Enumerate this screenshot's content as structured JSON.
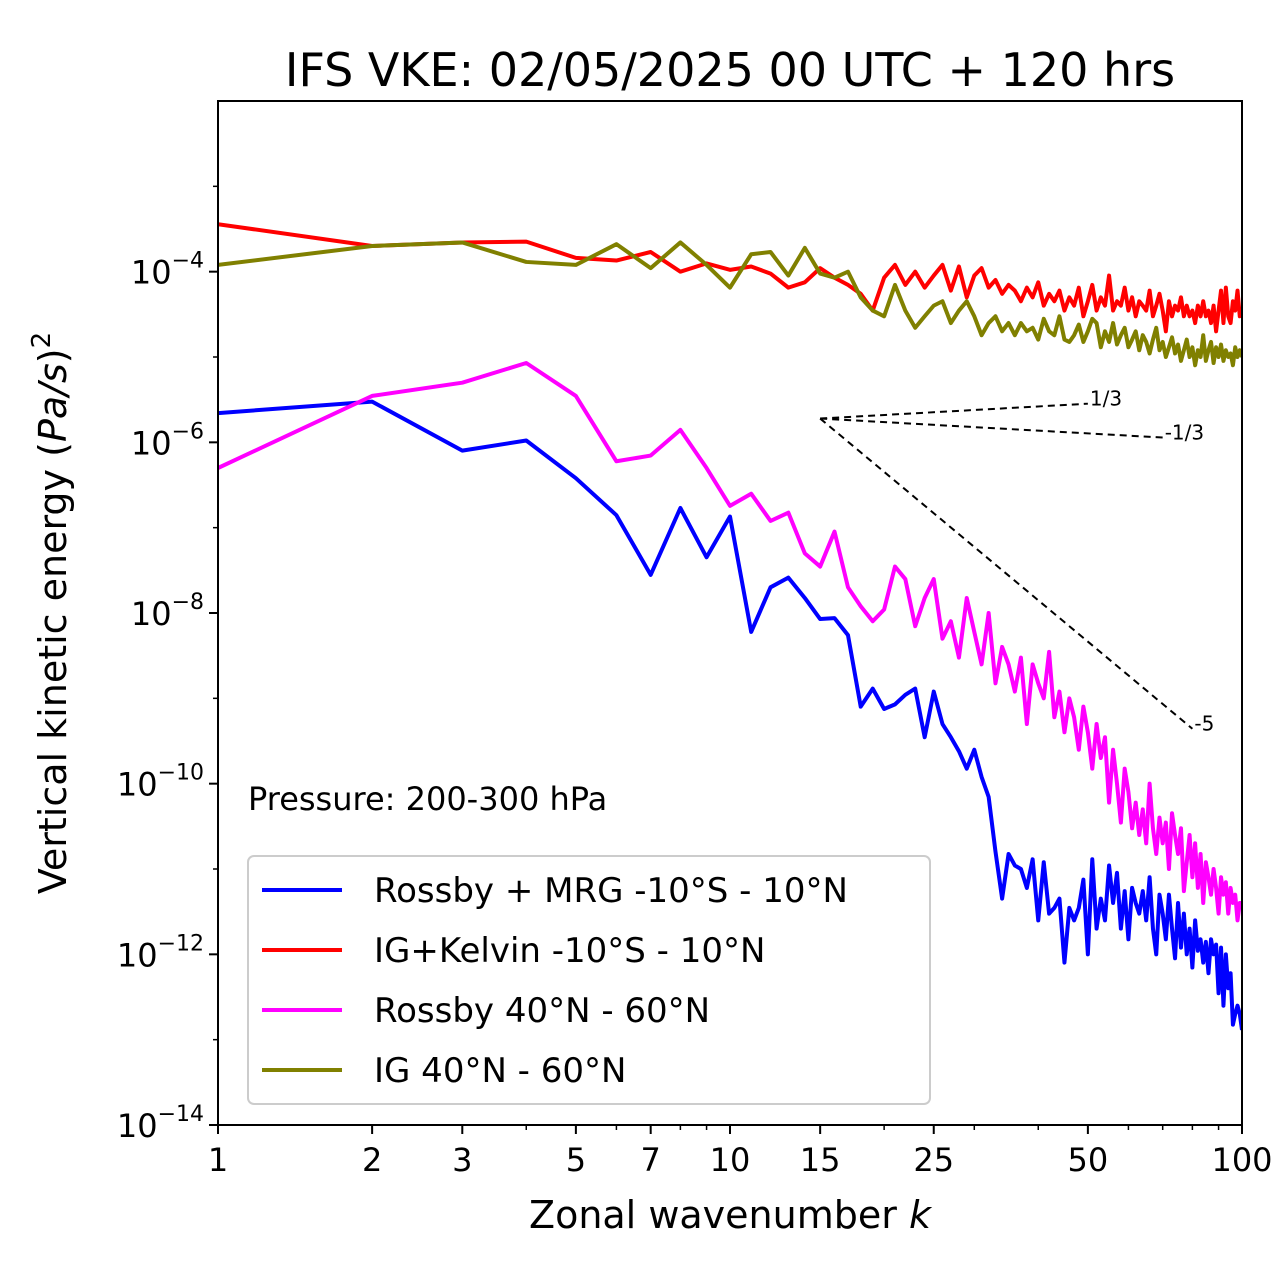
{
  "chart_data": {
    "type": "line",
    "title": "IFS VKE: 02/05/2025 00 UTC + 120 hrs",
    "xlabel": "Zonal wavenumber",
    "xlabel_var": "k",
    "ylabel_prefix": "Vertical kinetic energy (",
    "ylabel_var": "Pa/s",
    "ylabel_suffix": ")",
    "ylabel_power": "2",
    "xscale": "log",
    "yscale": "log",
    "xlim": [
      1,
      100
    ],
    "ylim": [
      1e-14,
      0.01
    ],
    "x_ticks": [
      1,
      2,
      3,
      5,
      7,
      10,
      15,
      25,
      50,
      100
    ],
    "x_tick_labels": [
      "1",
      "2",
      "3",
      "5",
      "7",
      "10",
      "15",
      "25",
      "50",
      "100"
    ],
    "y_ticks": [
      1e-14,
      1e-12,
      1e-10,
      1e-08,
      1e-06,
      0.0001
    ],
    "y_tick_base": "10",
    "y_tick_exponents": [
      "−14",
      "−12",
      "−10",
      "−8",
      "−6",
      "−4"
    ],
    "annotation": "Pressure: 200-300 hPa",
    "legend_position": "lower-left",
    "series": [
      {
        "name": "Rossby + MRG -10°S - 10°N",
        "color": "#0000ff",
        "x": [
          1,
          2,
          3,
          4,
          5,
          6,
          7,
          8,
          9,
          10,
          11,
          12,
          13,
          14,
          15,
          16,
          17,
          18,
          19,
          20,
          21,
          22,
          23,
          24,
          25,
          26,
          27,
          28,
          29,
          30,
          31,
          32,
          33,
          34,
          35,
          36,
          37,
          38,
          39,
          40,
          41,
          42,
          43,
          44,
          45,
          46,
          47,
          48,
          49,
          50,
          51,
          52,
          53,
          54,
          55,
          56,
          57,
          58,
          59,
          60,
          61,
          62,
          63,
          64,
          65,
          66,
          67,
          68,
          69,
          70,
          71,
          72,
          73,
          74,
          75,
          76,
          77,
          78,
          79,
          80,
          81,
          82,
          83,
          84,
          85,
          86,
          87,
          88,
          89,
          90,
          91,
          92,
          93,
          94,
          95,
          96,
          97,
          98,
          99,
          100
        ],
        "y": [
          2.2e-06,
          3e-06,
          8e-07,
          1.05e-06,
          3.8e-07,
          1.4e-07,
          2.8e-08,
          1.7e-07,
          4.5e-08,
          1.35e-07,
          6e-09,
          2e-08,
          2.6e-08,
          1.5e-08,
          8.5e-09,
          8.7e-09,
          5.5e-09,
          8e-10,
          1.3e-09,
          7.5e-10,
          8.5e-10,
          1.1e-09,
          1.3e-09,
          3.5e-10,
          1.2e-09,
          5e-10,
          3.5e-10,
          2.4e-10,
          1.5e-10,
          2.5e-10,
          1.2e-10,
          7e-11,
          1.6e-11,
          4.5e-12,
          1.5e-11,
          1.1e-11,
          1e-11,
          6e-12,
          1.3e-11,
          2.5e-12,
          1.2e-11,
          3e-12,
          3.5e-12,
          4.5e-12,
          8e-13,
          3.5e-12,
          2.5e-12,
          3.5e-12,
          7.5e-12,
          1e-12,
          1.3e-11,
          2e-12,
          4.5e-12,
          2.5e-12,
          1.1e-11,
          4e-12,
          9e-12,
          2e-12,
          5.5e-12,
          1.5e-12,
          6e-12,
          4e-12,
          3e-12,
          5.5e-12,
          2.5e-12,
          8e-12,
          2e-12,
          1e-12,
          5e-12,
          3e-12,
          1.5e-12,
          5e-12,
          2e-12,
          9e-13,
          4e-12,
          1.2e-12,
          3e-12,
          1e-12,
          2e-12,
          7e-13,
          2.5e-12,
          1.1e-12,
          1.5e-12,
          8e-13,
          1.4e-12,
          6e-13,
          1.5e-12,
          1e-12,
          1.3e-12,
          3.5e-13,
          1.2e-12,
          2.5e-13,
          1e-12,
          4e-13,
          6e-13,
          1.5e-13,
          2e-13,
          2.5e-13,
          2e-13,
          1.3e-13
        ]
      },
      {
        "name": "IG+Kelvin -10°S - 10°N",
        "color": "#ff0000",
        "x": [
          1,
          2,
          3,
          4,
          5,
          6,
          7,
          8,
          9,
          10,
          11,
          12,
          13,
          14,
          15,
          16,
          17,
          18,
          19,
          20,
          21,
          22,
          23,
          24,
          25,
          26,
          27,
          28,
          29,
          30,
          31,
          32,
          33,
          34,
          35,
          36,
          37,
          38,
          39,
          40,
          41,
          42,
          43,
          44,
          45,
          46,
          47,
          48,
          49,
          50,
          51,
          52,
          53,
          54,
          55,
          56,
          57,
          58,
          59,
          60,
          61,
          62,
          63,
          64,
          65,
          66,
          67,
          68,
          69,
          70,
          71,
          72,
          73,
          74,
          75,
          76,
          77,
          78,
          79,
          80,
          81,
          82,
          83,
          84,
          85,
          86,
          87,
          88,
          89,
          90,
          91,
          92,
          93,
          94,
          95,
          96,
          97,
          98,
          99,
          100
        ],
        "y": [
          0.00036,
          0.0002,
          0.00022,
          0.000225,
          0.000145,
          0.000135,
          0.00017,
          0.0001,
          0.000125,
          0.000105,
          0.000115,
          9.5e-05,
          6.5e-05,
          7.5e-05,
          0.00011,
          8.5e-05,
          7e-05,
          5.5e-05,
          3.5e-05,
          8.5e-05,
          0.00012,
          7e-05,
          0.0001,
          6.5e-05,
          9e-05,
          0.00012,
          6e-05,
          0.000115,
          5e-05,
          9e-05,
          0.00011,
          6.5e-05,
          8e-05,
          5.5e-05,
          7e-05,
          6e-05,
          4.5e-05,
          6.5e-05,
          5e-05,
          7.5e-05,
          4e-05,
          5.5e-05,
          4.5e-05,
          6e-05,
          3.5e-05,
          5e-05,
          4e-05,
          6.5e-05,
          3e-05,
          4.5e-05,
          7e-05,
          3.5e-05,
          5e-05,
          4e-05,
          9e-05,
          3.5e-05,
          4.5e-05,
          4e-05,
          6.5e-05,
          3.5e-05,
          5e-05,
          3e-05,
          4.5e-05,
          4e-05,
          3.5e-05,
          6e-05,
          3e-05,
          4e-05,
          5.5e-05,
          3.5e-05,
          2e-05,
          4.5e-05,
          3e-05,
          4e-05,
          3.5e-05,
          5e-05,
          3e-05,
          4e-05,
          3e-05,
          3.5e-05,
          2.5e-05,
          4e-05,
          3e-05,
          4.5e-05,
          3e-05,
          3.5e-05,
          2.5e-05,
          4e-05,
          2e-05,
          3.5e-05,
          6e-05,
          2.5e-05,
          6.5e-05,
          3e-05,
          2.5e-05,
          4.5e-05,
          3.5e-05,
          6e-05,
          3e-05,
          3.5e-05
        ]
      },
      {
        "name": "Rossby 40°N - 60°N",
        "color": "#ff00ff",
        "x": [
          1,
          2,
          3,
          4,
          5,
          6,
          7,
          8,
          9,
          10,
          11,
          12,
          13,
          14,
          15,
          16,
          17,
          18,
          19,
          20,
          21,
          22,
          23,
          24,
          25,
          26,
          27,
          28,
          29,
          30,
          31,
          32,
          33,
          34,
          35,
          36,
          37,
          38,
          39,
          40,
          41,
          42,
          43,
          44,
          45,
          46,
          47,
          48,
          49,
          50,
          51,
          52,
          53,
          54,
          55,
          56,
          57,
          58,
          59,
          60,
          61,
          62,
          63,
          64,
          65,
          66,
          67,
          68,
          69,
          70,
          71,
          72,
          73,
          74,
          75,
          76,
          77,
          78,
          79,
          80,
          81,
          82,
          83,
          84,
          85,
          86,
          87,
          88,
          89,
          90,
          91,
          92,
          93,
          94,
          95,
          96,
          97,
          98,
          99,
          100
        ],
        "y": [
          5e-07,
          3.5e-06,
          5e-06,
          8.5e-06,
          3.5e-06,
          6e-07,
          7e-07,
          1.4e-06,
          5e-07,
          1.8e-07,
          2.5e-07,
          1.2e-07,
          1.5e-07,
          5e-08,
          3.5e-08,
          9e-08,
          2e-08,
          1.2e-08,
          8e-09,
          1.1e-08,
          3.5e-08,
          2.5e-08,
          7e-09,
          1.5e-08,
          2.5e-08,
          5e-09,
          8e-09,
          3e-09,
          1.5e-08,
          6e-09,
          2.5e-09,
          1e-08,
          1.5e-09,
          4e-09,
          2.5e-09,
          1.2e-09,
          3e-09,
          5e-10,
          2.5e-09,
          1.5e-09,
          1e-09,
          3.5e-09,
          6e-10,
          1.2e-09,
          4e-10,
          1e-09,
          6e-10,
          2.5e-10,
          8e-10,
          4e-10,
          1.5e-10,
          5e-10,
          2e-10,
          3.5e-10,
          6e-11,
          2.5e-10,
          1e-10,
          3.5e-11,
          1.5e-10,
          8e-11,
          3e-11,
          6e-11,
          2.5e-11,
          5e-11,
          2e-11,
          1e-10,
          3e-11,
          1.5e-11,
          4e-11,
          2e-11,
          3.5e-11,
          1e-11,
          4.5e-11,
          2.5e-11,
          1.5e-11,
          3e-11,
          5.5e-12,
          1.2e-11,
          2.5e-11,
          8e-12,
          2e-11,
          6e-12,
          1.5e-11,
          4e-12,
          1.2e-11,
          8e-12,
          5e-12,
          1e-11,
          6e-12,
          3e-12,
          8e-12,
          5e-12,
          7e-12,
          3e-12,
          6e-12,
          4e-12,
          5e-12,
          2.5e-12,
          4e-12,
          4e-12
        ]
      },
      {
        "name": "IG 40°N - 60°N",
        "color": "#808000",
        "x": [
          1,
          2,
          3,
          4,
          5,
          6,
          7,
          8,
          9,
          10,
          11,
          12,
          13,
          14,
          15,
          16,
          17,
          18,
          19,
          20,
          21,
          22,
          23,
          24,
          25,
          26,
          27,
          28,
          29,
          30,
          31,
          32,
          33,
          34,
          35,
          36,
          37,
          38,
          39,
          40,
          41,
          42,
          43,
          44,
          45,
          46,
          47,
          48,
          49,
          50,
          51,
          52,
          53,
          54,
          55,
          56,
          57,
          58,
          59,
          60,
          61,
          62,
          63,
          64,
          65,
          66,
          67,
          68,
          69,
          70,
          71,
          72,
          73,
          74,
          75,
          76,
          77,
          78,
          79,
          80,
          81,
          82,
          83,
          84,
          85,
          86,
          87,
          88,
          89,
          90,
          91,
          92,
          93,
          94,
          95,
          96,
          97,
          98,
          99,
          100
        ],
        "y": [
          0.00012,
          0.0002,
          0.00022,
          0.00013,
          0.00012,
          0.00021,
          0.00011,
          0.00022,
          0.00012,
          6.5e-05,
          0.00016,
          0.00017,
          9e-05,
          0.00019,
          9.5e-05,
          8.5e-05,
          0.0001,
          5e-05,
          3.5e-05,
          3e-05,
          7e-05,
          3.5e-05,
          2.2e-05,
          3e-05,
          4e-05,
          4.5e-05,
          2.5e-05,
          3.5e-05,
          4.5e-05,
          3e-05,
          1.8e-05,
          2.5e-05,
          3e-05,
          2e-05,
          2.5e-05,
          1.8e-05,
          2.5e-05,
          2e-05,
          2.2e-05,
          1.6e-05,
          2.8e-05,
          2e-05,
          1.8e-05,
          3e-05,
          1.6e-05,
          1.5e-05,
          1.8e-05,
          2.4e-05,
          1.5e-05,
          2e-05,
          2.8e-05,
          2.5e-05,
          1.3e-05,
          2e-05,
          1.5e-05,
          2.5e-05,
          1.4e-05,
          1.8e-05,
          2.2e-05,
          1.3e-05,
          1.6e-05,
          2e-05,
          1.2e-05,
          1.8e-05,
          1.5e-05,
          1.1e-05,
          1.6e-05,
          2.2e-05,
          1.2e-05,
          1.5e-05,
          1e-05,
          1.3e-05,
          1.7e-05,
          1.1e-05,
          1.4e-05,
          9e-06,
          1.2e-05,
          1.6e-05,
          1e-05,
          1.3e-05,
          8e-06,
          1.2e-05,
          1e-05,
          1.8e-05,
          9e-06,
          1.2e-05,
          1.5e-05,
          8.5e-06,
          1.3e-05,
          1e-05,
          1.4e-05,
          9e-06,
          1.2e-05,
          1e-05,
          1.1e-05,
          8e-06,
          1.3e-05,
          1e-05,
          1.2e-05,
          1e-05
        ]
      }
    ],
    "reference_lines": [
      {
        "label": "1/3",
        "slope": 0.333,
        "x0": 15,
        "y0": 1.9e-06,
        "x1": 50
      },
      {
        "label": "-1/3",
        "slope": -0.333,
        "x0": 15,
        "y0": 1.9e-06,
        "x1": 70
      },
      {
        "label": "-5",
        "slope": -5,
        "x0": 15,
        "y0": 1.9e-06,
        "x1": 80
      }
    ]
  }
}
